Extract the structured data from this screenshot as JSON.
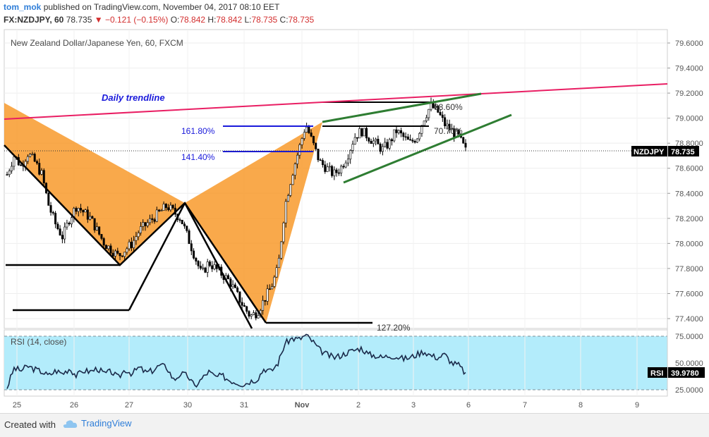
{
  "header": {
    "user": "tom_mok",
    "published": "published on TradingView.com, November 04, 2017 08:10 EET",
    "symbol": "FX:NZDJPY, 60",
    "last": "78.735",
    "change": "▼ −0.121 (−0.15%)",
    "o_label": "O:",
    "o": "78.842",
    "h_label": "H:",
    "h": "78.842",
    "l_label": "L:",
    "l": "78.735",
    "c_label": "C:",
    "c": "78.735"
  },
  "chart_title": "New Zealand Dollar/Japanese Yen, 60, FXCM",
  "annotations": {
    "daily_trendline": "Daily trendline",
    "fib_161": "161.80%",
    "fib_141": "141.40%",
    "fib_886": "88.60%",
    "fib_707": "70.70%",
    "fib_127": "127.20%"
  },
  "price_tag": {
    "label": "NZDJPY",
    "value": "78.735"
  },
  "rsi": {
    "title": "RSI (14, close)",
    "tag_label": "RSI",
    "tag_value": "39.9780"
  },
  "footer": {
    "created": "Created with",
    "brand": "TradingView"
  },
  "colors": {
    "bull": "#000000",
    "pattern_fill": "#f7931e",
    "trendline": "#e91e63",
    "channel": "#2e7d32",
    "fib": "#1a1adb",
    "rsi_band": "#b3ecfb"
  },
  "chart_data": {
    "type": "candlestick",
    "symbol": "NZDJPY",
    "price_axis": {
      "ticks": [
        77.4,
        77.6,
        77.8,
        78.0,
        78.2,
        78.4,
        78.6,
        78.8,
        79.0,
        79.2,
        79.4,
        79.6
      ],
      "range": [
        77.35,
        79.7
      ]
    },
    "time_axis": {
      "ticks": [
        "25",
        "26",
        "27",
        "30",
        "31",
        "Nov",
        "2",
        "3",
        "6",
        "7",
        "8",
        "9"
      ]
    },
    "rsi_axis": {
      "ticks": [
        25.0,
        50.0,
        75.0
      ],
      "range": [
        18,
        82
      ],
      "bands": [
        30,
        70
      ]
    },
    "close_path": [
      [
        0.0,
        78.55
      ],
      [
        1.0,
        78.7
      ],
      [
        2.0,
        78.62
      ],
      [
        3.0,
        78.72
      ],
      [
        4.0,
        78.65
      ],
      [
        5.0,
        78.55
      ],
      [
        6.0,
        78.3
      ],
      [
        7.0,
        78.15
      ],
      [
        8.0,
        78.05
      ],
      [
        9.0,
        78.2
      ],
      [
        10.0,
        78.3
      ],
      [
        11.0,
        78.25
      ],
      [
        12.0,
        78.2
      ],
      [
        13.0,
        78.1
      ],
      [
        14.0,
        78.0
      ],
      [
        15.0,
        77.95
      ],
      [
        16.0,
        77.9
      ],
      [
        17.0,
        77.95
      ],
      [
        18.0,
        78.0
      ],
      [
        19.0,
        78.1
      ],
      [
        20.0,
        78.15
      ],
      [
        21.0,
        78.2
      ],
      [
        22.0,
        78.25
      ],
      [
        23.0,
        78.3
      ],
      [
        24.0,
        78.25
      ],
      [
        25.0,
        78.2
      ],
      [
        26.0,
        78.05
      ],
      [
        27.0,
        77.9
      ],
      [
        28.0,
        77.75
      ],
      [
        29.0,
        77.85
      ],
      [
        30.0,
        77.8
      ],
      [
        31.0,
        77.75
      ],
      [
        32.0,
        77.7
      ],
      [
        33.0,
        77.6
      ],
      [
        34.0,
        77.5
      ],
      [
        35.0,
        77.42
      ],
      [
        36.0,
        77.45
      ],
      [
        37.0,
        77.55
      ],
      [
        38.0,
        77.65
      ],
      [
        39.0,
        77.8
      ],
      [
        40.0,
        78.3
      ],
      [
        41.0,
        78.55
      ],
      [
        42.0,
        78.75
      ],
      [
        43.0,
        78.95
      ],
      [
        44.0,
        78.8
      ],
      [
        45.0,
        78.65
      ],
      [
        46.0,
        78.6
      ],
      [
        47.0,
        78.55
      ],
      [
        48.0,
        78.6
      ],
      [
        49.0,
        78.7
      ],
      [
        50.0,
        78.85
      ],
      [
        51.0,
        78.9
      ],
      [
        52.0,
        78.85
      ],
      [
        53.0,
        78.8
      ],
      [
        54.0,
        78.75
      ],
      [
        55.0,
        78.8
      ],
      [
        56.0,
        78.9
      ],
      [
        57.0,
        78.85
      ],
      [
        58.0,
        78.8
      ],
      [
        59.0,
        78.85
      ],
      [
        60.0,
        79.0
      ],
      [
        61.0,
        79.1
      ],
      [
        62.0,
        79.05
      ],
      [
        63.0,
        78.95
      ],
      [
        64.0,
        78.9
      ],
      [
        65.0,
        78.85
      ],
      [
        66.0,
        78.74
      ]
    ],
    "rsi_path": [
      [
        0.0,
        27
      ],
      [
        1.0,
        45
      ],
      [
        2.0,
        43
      ],
      [
        3.0,
        47
      ],
      [
        4.0,
        44
      ],
      [
        5.0,
        42
      ],
      [
        6.0,
        38
      ],
      [
        7.0,
        43
      ],
      [
        8.0,
        40
      ],
      [
        9.0,
        45
      ],
      [
        10.0,
        38
      ],
      [
        11.0,
        43
      ],
      [
        12.0,
        42
      ],
      [
        13.0,
        45
      ],
      [
        14.0,
        40
      ],
      [
        15.0,
        42
      ],
      [
        16.0,
        36
      ],
      [
        17.0,
        44
      ],
      [
        18.0,
        40
      ],
      [
        19.0,
        46
      ],
      [
        20.0,
        41
      ],
      [
        21.0,
        43
      ],
      [
        22.0,
        48
      ],
      [
        23.0,
        46
      ],
      [
        24.0,
        34
      ],
      [
        25.0,
        40
      ],
      [
        26.0,
        38
      ],
      [
        27.0,
        28
      ],
      [
        28.0,
        35
      ],
      [
        29.0,
        42
      ],
      [
        30.0,
        37
      ],
      [
        31.0,
        38
      ],
      [
        32.0,
        34
      ],
      [
        33.0,
        32
      ],
      [
        34.0,
        30
      ],
      [
        35.0,
        33
      ],
      [
        36.0,
        35
      ],
      [
        37.0,
        45
      ],
      [
        38.0,
        42
      ],
      [
        39.0,
        50
      ],
      [
        40.0,
        68
      ],
      [
        41.0,
        73
      ],
      [
        42.0,
        72
      ],
      [
        43.0,
        76
      ],
      [
        44.0,
        70
      ],
      [
        45.0,
        62
      ],
      [
        46.0,
        58
      ],
      [
        47.0,
        55
      ],
      [
        48.0,
        57
      ],
      [
        49.0,
        60
      ],
      [
        50.0,
        62
      ],
      [
        51.0,
        64
      ],
      [
        52.0,
        58
      ],
      [
        53.0,
        57
      ],
      [
        54.0,
        55
      ],
      [
        55.0,
        57
      ],
      [
        56.0,
        56
      ],
      [
        57.0,
        54
      ],
      [
        58.0,
        55
      ],
      [
        59.0,
        58
      ],
      [
        60.0,
        61
      ],
      [
        61.0,
        57
      ],
      [
        62.0,
        55
      ],
      [
        63.0,
        58
      ],
      [
        64.0,
        50
      ],
      [
        65.0,
        48
      ],
      [
        66.0,
        40
      ]
    ]
  }
}
